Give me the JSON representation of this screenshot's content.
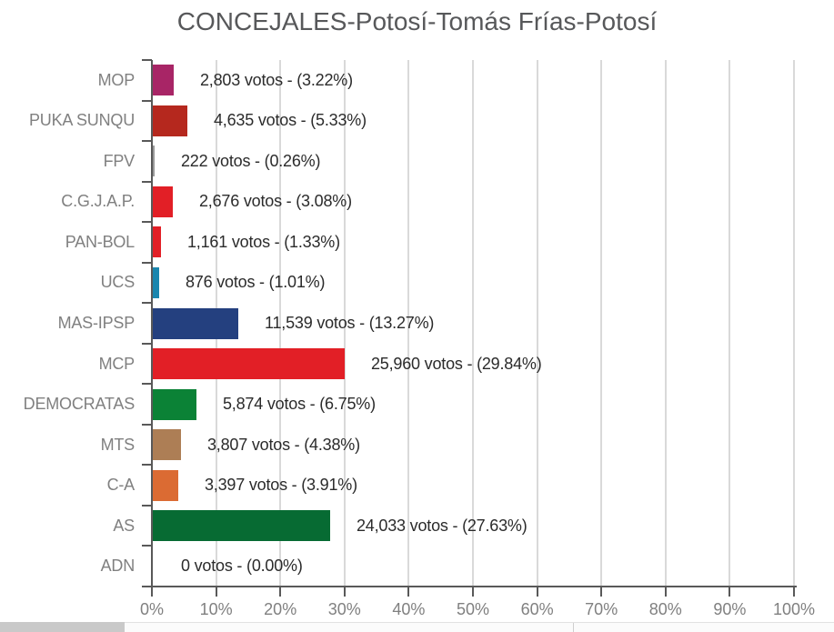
{
  "title": "CONCEJALES-Potosí-Tomás Frías-Potosí",
  "chart_data": {
    "type": "bar",
    "orientation": "horizontal",
    "title": "CONCEJALES-Potosí-Tomás Frías-Potosí",
    "xlabel": "",
    "ylabel": "",
    "xlim": [
      0,
      100
    ],
    "grid": true,
    "legend": false,
    "x_ticks": [
      "0%",
      "10%",
      "20%",
      "30%",
      "40%",
      "50%",
      "60%",
      "70%",
      "80%",
      "90%",
      "100%"
    ],
    "categories": [
      "MOP",
      "PUKA SUNQU",
      "FPV",
      "C.G.J.A.P.",
      "PAN-BOL",
      "UCS",
      "MAS-IPSP",
      "MCP",
      "DEMOCRATAS",
      "MTS",
      "C-A",
      "AS",
      "ADN"
    ],
    "value_unit": "votos",
    "bars": [
      {
        "party": "MOP",
        "votes": 2803,
        "pct": 3.22,
        "label": "2,803 votos - (3.22%)",
        "color": "#A82566"
      },
      {
        "party": "PUKA SUNQU",
        "votes": 4635,
        "pct": 5.33,
        "label": "4,635 votos - (5.33%)",
        "color": "#B5281E"
      },
      {
        "party": "FPV",
        "votes": 222,
        "pct": 0.26,
        "label": "222 votos - (0.26%)",
        "color": null
      },
      {
        "party": "C.G.J.A.P.",
        "votes": 2676,
        "pct": 3.08,
        "label": "2,676 votos - (3.08%)",
        "color": "#E21F26"
      },
      {
        "party": "PAN-BOL",
        "votes": 1161,
        "pct": 1.33,
        "label": "1,161 votos - (1.33%)",
        "color": "#E21F26"
      },
      {
        "party": "UCS",
        "votes": 876,
        "pct": 1.01,
        "label": "876 votos - (1.01%)",
        "color": "#1A86AE"
      },
      {
        "party": "MAS-IPSP",
        "votes": 11539,
        "pct": 13.27,
        "label": "11,539 votos - (13.27%)",
        "color": "#24407F"
      },
      {
        "party": "MCP",
        "votes": 25960,
        "pct": 29.84,
        "label": "25,960 votos - (29.84%)",
        "color": "#E21F26"
      },
      {
        "party": "DEMOCRATAS",
        "votes": 5874,
        "pct": 6.75,
        "label": "5,874 votos - (6.75%)",
        "color": "#0B8236"
      },
      {
        "party": "MTS",
        "votes": 3807,
        "pct": 4.38,
        "label": "3,807 votos - (4.38%)",
        "color": "#AD7E55"
      },
      {
        "party": "C-A",
        "votes": 3397,
        "pct": 3.91,
        "label": "3,397 votos - (3.91%)",
        "color": "#DB6B33"
      },
      {
        "party": "AS",
        "votes": 24033,
        "pct": 27.63,
        "label": "24,033 votos - (27.63%)",
        "color": "#076B33"
      },
      {
        "party": "ADN",
        "votes": 0,
        "pct": 0.0,
        "label": "0 votos - (0.00%)",
        "color": null
      }
    ]
  },
  "colors": {
    "title": "#57585A",
    "axis": "#595959",
    "gridline": "#D9D9D9",
    "tick_label": "#808080",
    "category_label": "#808080",
    "value_label": "#2B2B2B",
    "scrollbar_thumb": "#C9C9C9"
  }
}
